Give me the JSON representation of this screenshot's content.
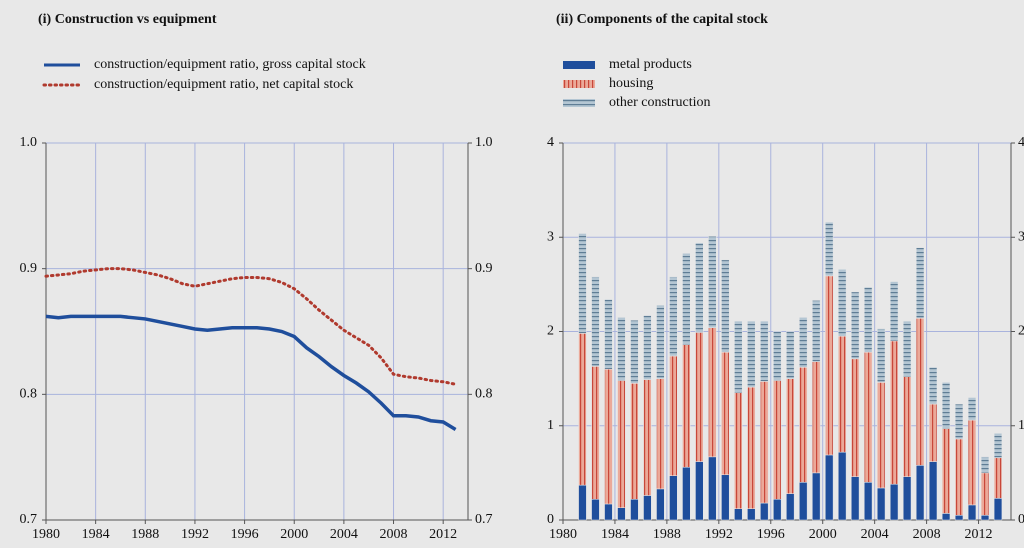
{
  "chart_data": [
    {
      "type": "line",
      "title": "(i) Construction vs equipment",
      "x": [
        1980,
        1981,
        1982,
        1983,
        1984,
        1985,
        1986,
        1987,
        1988,
        1989,
        1990,
        1991,
        1992,
        1993,
        1994,
        1995,
        1996,
        1997,
        1998,
        1999,
        2000,
        2001,
        2002,
        2003,
        2004,
        2005,
        2006,
        2007,
        2008,
        2009,
        2010,
        2011,
        2012,
        2013
      ],
      "series": [
        {
          "name": "construction/equipment ratio, gross capital stock",
          "color": "#1f4e9c",
          "style": "solid",
          "values": [
            0.862,
            0.861,
            0.862,
            0.862,
            0.862,
            0.862,
            0.862,
            0.861,
            0.86,
            0.858,
            0.856,
            0.854,
            0.852,
            0.851,
            0.852,
            0.853,
            0.853,
            0.853,
            0.852,
            0.85,
            0.846,
            0.837,
            0.83,
            0.822,
            0.815,
            0.809,
            0.802,
            0.793,
            0.783,
            0.783,
            0.782,
            0.779,
            0.778,
            0.772
          ]
        },
        {
          "name": "construction/equipment ratio, net capital stock",
          "color": "#b03a2e",
          "style": "dotted",
          "values": [
            0.894,
            0.895,
            0.896,
            0.898,
            0.899,
            0.9,
            0.9,
            0.899,
            0.897,
            0.895,
            0.892,
            0.888,
            0.886,
            0.888,
            0.89,
            0.892,
            0.893,
            0.893,
            0.892,
            0.889,
            0.884,
            0.876,
            0.867,
            0.859,
            0.851,
            0.845,
            0.839,
            0.829,
            0.816,
            0.814,
            0.813,
            0.811,
            0.81,
            0.808
          ]
        }
      ],
      "xlim": [
        1980,
        2014
      ],
      "xticks": [
        1980,
        1984,
        1988,
        1992,
        1996,
        2000,
        2004,
        2008,
        2012
      ],
      "ylim": [
        0.7,
        1.0
      ],
      "yticks": [
        0.7,
        0.8,
        0.9,
        {
          "value": 1.0,
          "label": "1.0"
        }
      ],
      "grid": true
    },
    {
      "type": "bar",
      "title": "(ii) Components of the capital stock",
      "stacked": true,
      "x": [
        1981,
        1982,
        1983,
        1984,
        1985,
        1986,
        1987,
        1988,
        1989,
        1990,
        1991,
        1992,
        1993,
        1994,
        1995,
        1996,
        1997,
        1998,
        1999,
        2000,
        2001,
        2002,
        2003,
        2004,
        2005,
        2006,
        2007,
        2008,
        2009,
        2010,
        2011,
        2012,
        2013
      ],
      "series": [
        {
          "name": "metal products",
          "color": "#1f4e9c",
          "values": [
            0.37,
            0.22,
            0.17,
            0.13,
            0.22,
            0.26,
            0.33,
            0.47,
            0.56,
            0.62,
            0.67,
            0.48,
            0.12,
            0.12,
            0.18,
            0.22,
            0.28,
            0.4,
            0.5,
            0.69,
            0.72,
            0.46,
            0.4,
            0.34,
            0.38,
            0.46,
            0.58,
            0.62,
            0.07,
            0.05,
            0.16,
            0.05,
            0.23
          ]
        },
        {
          "name": "housing",
          "color": "#eba999",
          "values": [
            1.61,
            1.41,
            1.43,
            1.35,
            1.23,
            1.23,
            1.17,
            1.27,
            1.3,
            1.37,
            1.37,
            1.3,
            1.23,
            1.29,
            1.29,
            1.26,
            1.22,
            1.22,
            1.18,
            1.9,
            1.23,
            1.25,
            1.38,
            1.12,
            1.52,
            1.06,
            1.56,
            0.61,
            0.9,
            0.81,
            0.9,
            0.45,
            0.43
          ]
        },
        {
          "name": "other construction",
          "color": "#b4c6d3",
          "values": [
            1.06,
            0.95,
            0.74,
            0.67,
            0.67,
            0.68,
            0.78,
            0.84,
            0.97,
            0.95,
            0.97,
            0.98,
            0.76,
            0.7,
            0.64,
            0.52,
            0.5,
            0.53,
            0.65,
            0.57,
            0.71,
            0.71,
            0.69,
            0.57,
            0.63,
            0.59,
            0.75,
            0.39,
            0.49,
            0.37,
            0.24,
            0.17,
            0.26
          ]
        }
      ],
      "xlim": [
        1980,
        2014.5
      ],
      "xticks": [
        1980,
        1984,
        1988,
        1992,
        1996,
        2000,
        2004,
        2008,
        2012
      ],
      "ylim": [
        0,
        4
      ],
      "yticks": [
        0,
        1,
        2,
        3,
        4
      ],
      "grid": true
    }
  ]
}
